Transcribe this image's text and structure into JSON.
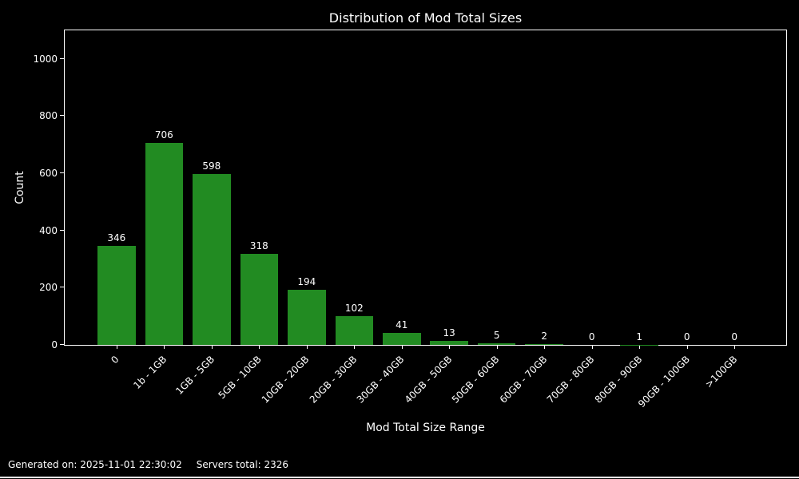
{
  "figure": {
    "footer": {
      "generated": "Generated on: 2025-11-01 22:30:02",
      "servers": "Servers total: 2326"
    }
  },
  "chart_data": {
    "type": "bar",
    "title": "Distribution of Mod Total Sizes",
    "xlabel": "Mod Total Size Range",
    "ylabel": "Count",
    "categories": [
      "0",
      "1b - 1GB",
      "1GB - 5GB",
      "5GB - 10GB",
      "10GB - 20GB",
      "20GB - 30GB",
      "30GB - 40GB",
      "40GB - 50GB",
      "50GB - 60GB",
      "60GB - 70GB",
      "70GB - 80GB",
      "80GB - 90GB",
      "90GB - 100GB",
      ">100GB"
    ],
    "values": [
      346,
      706,
      598,
      318,
      194,
      102,
      41,
      13,
      5,
      2,
      0,
      1,
      0,
      0
    ],
    "yticks": [
      0,
      200,
      400,
      600,
      800,
      1000
    ],
    "ylim": [
      0,
      1100
    ],
    "xlim": [
      -1.09,
      14.09
    ],
    "bar_width_units": 0.8,
    "bar_color": "#228B22",
    "background_color": "#000000",
    "text_color": "#ffffff",
    "grid": false,
    "bar_value_labels": true,
    "legend": null,
    "xtick_rotation_deg": 45
  }
}
